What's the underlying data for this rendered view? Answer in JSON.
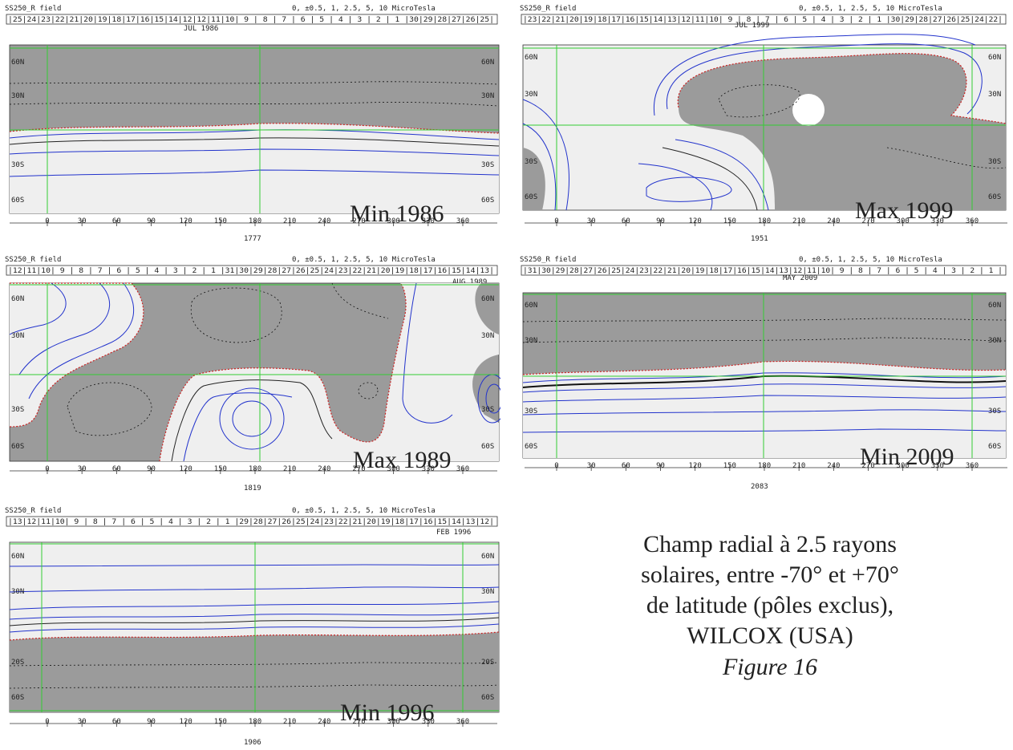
{
  "panels": [
    {
      "id": "p1986",
      "header_left": "SS250_R field",
      "header_right": "0, ±0.5, 1, 2.5, 5, 10 MicroTesla",
      "rot_strip": "|25|24|23|22|21|20|19|18|17|16|15|14|12|12|11|10| 9 | 8 | 7 | 6 | 5 | 4 | 3 | 2 | 1 |30|29|28|27|26|25|",
      "date": "JUL 1986",
      "lat_labels_left": [
        "60N",
        "30N",
        "30S",
        "60S"
      ],
      "lat_labels_right": [
        "60N",
        "30N",
        "30S",
        "60S"
      ],
      "lon_ticks": [
        "0",
        "30",
        "60",
        "90",
        "120",
        "150",
        "180",
        "210",
        "240",
        "270",
        "300",
        "330",
        "360"
      ],
      "rotation": "1777",
      "label": "Min 1986"
    },
    {
      "id": "p1999",
      "header_left": "SS250_R field",
      "header_right": "0, ±0.5, 1, 2.5, 5, 10 MicroTesla",
      "rot_strip": "|23|22|21|20|19|18|17|16|15|14|13|12|11|10| 9 | 8 | 7 | 6 | 5 | 4 | 3 | 2 | 1 |30|29|28|27|26|25|24|22|",
      "date": "JUL 1999",
      "lat_labels_left": [
        "60N",
        "30N",
        "30S",
        "60S"
      ],
      "lat_labels_right": [
        "60N",
        "30N",
        "30S",
        "60S"
      ],
      "lon_ticks": [
        "0",
        "30",
        "60",
        "90",
        "120",
        "150",
        "180",
        "210",
        "240",
        "270",
        "300",
        "330",
        "360"
      ],
      "rotation": "1951",
      "label": "Max 1999"
    },
    {
      "id": "p1989",
      "header_left": "SS250_R field",
      "header_right": "0, ±0.5, 1, 2.5, 5, 10 MicroTesla",
      "rot_strip": "|12|11|10| 9 | 8 | 7 | 6 | 5 | 4 | 3 | 2 | 1 |31|30|29|28|27|26|25|24|23|22|21|20|19|18|17|16|15|14|13|",
      "date": "AUG 1989",
      "lat_labels_left": [
        "60N",
        "30N",
        "30S",
        "60S"
      ],
      "lat_labels_right": [
        "60N",
        "30N",
        "30S",
        "60S"
      ],
      "lon_ticks": [
        "0",
        "30",
        "60",
        "90",
        "120",
        "150",
        "180",
        "210",
        "240",
        "270",
        "300",
        "330",
        "360"
      ],
      "rotation": "1819",
      "label": "Max 1989"
    },
    {
      "id": "p2009",
      "header_left": "SS250_R field",
      "header_right": "0, ±0.5, 1, 2.5, 5, 10 MicroTesla",
      "rot_strip": "|31|30|29|28|27|26|25|24|23|22|21|20|19|18|17|16|15|14|13|12|11|10| 9 | 8 | 7 | 6 | 5 | 4 | 3 | 2 | 1 |",
      "date": "MAY 2009",
      "lat_labels_left": [
        "60N",
        "30N",
        "30S",
        "60S"
      ],
      "lat_labels_right": [
        "60N",
        "30N",
        "30S",
        "60S"
      ],
      "lon_ticks": [
        "0",
        "30",
        "60",
        "90",
        "120",
        "150",
        "180",
        "210",
        "240",
        "270",
        "300",
        "330",
        "360"
      ],
      "rotation": "2083",
      "label": "Min 2009"
    },
    {
      "id": "p1996",
      "header_left": "SS250_R field",
      "header_right": "0, ±0.5, 1, 2.5, 5, 10 MicroTesla",
      "rot_strip": "|13|12|11|10| 9 | 8 | 7 | 6 | 5 | 4 | 3 | 2 | 1 |29|28|27|26|25|24|23|22|21|20|19|18|17|16|15|14|13|12|",
      "date": "FEB 1996",
      "lat_labels_left": [
        "60N",
        "30N",
        "20S",
        "60S"
      ],
      "lat_labels_right": [
        "60N",
        "30N",
        "20S",
        "60S"
      ],
      "lon_ticks": [
        "0",
        "30",
        "60",
        "90",
        "120",
        "150",
        "180",
        "210",
        "240",
        "270",
        "300",
        "330",
        "360"
      ],
      "rotation": "1906",
      "label": "Min 1996"
    }
  ],
  "caption": {
    "line1": "Champ radial à 2.5 rayons",
    "line2": "solaires, entre -70° et +70°",
    "line3": "de latitude (pôles exclus),",
    "line4": "WILCOX (USA)",
    "figure": "Figure 16"
  },
  "colors": {
    "negative": "#9b9b9b",
    "positive": "#efefef",
    "grid": "#33cc33",
    "contour": "#2233cc",
    "neutral": "#cc2222"
  }
}
